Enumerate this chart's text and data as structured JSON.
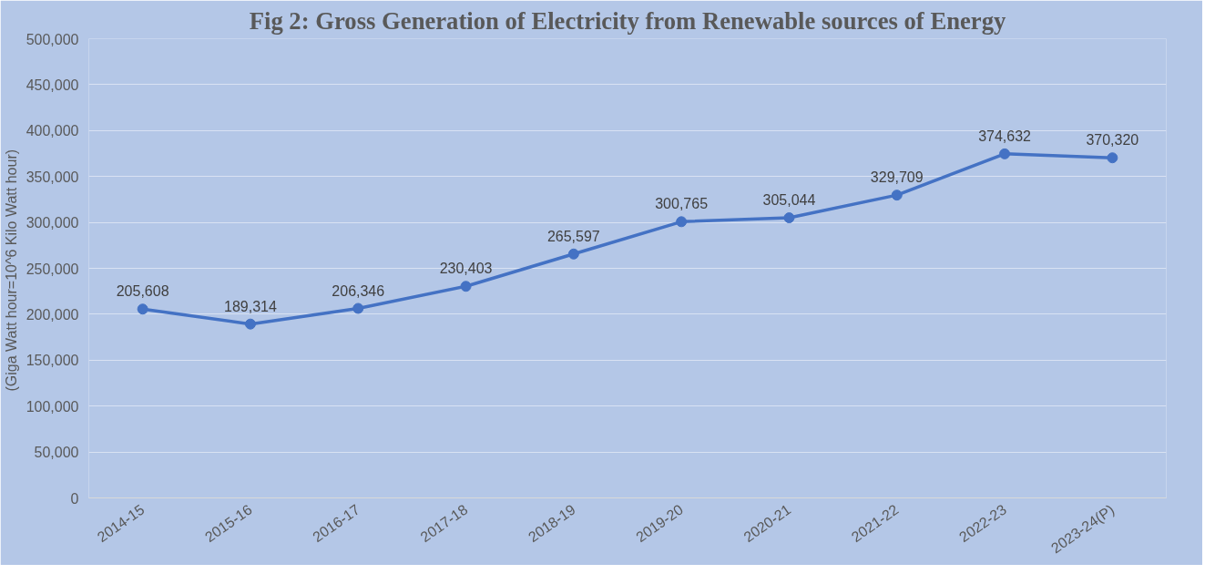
{
  "chart_data": {
    "type": "line",
    "title": "Fig 2: Gross Generation of Electricity from Renewable sources of Energy",
    "ylabel": "(Giga Watt hour=10^6  Kilo Watt hour)",
    "categories": [
      "2014-15",
      "2015-16",
      "2016-17",
      "2017-18",
      "2018-19",
      "2019-20",
      "2020-21",
      "2021-22",
      "2022-23",
      "2023-24(P)"
    ],
    "series": [
      {
        "color": "#4472c4",
        "values": [
          205608,
          189314,
          206346,
          230403,
          265597,
          300765,
          305044,
          329709,
          374632,
          370320
        ],
        "value_labels": [
          "205,608",
          "189,314",
          "206,346",
          "230,403",
          "265,597",
          "300,765",
          "305,044",
          "329,709",
          "374,632",
          "370,320"
        ]
      }
    ],
    "ylim": [
      0,
      500000
    ],
    "yticks": [
      {
        "value": 0,
        "label": "0"
      },
      {
        "value": 50000,
        "label": "50,000"
      },
      {
        "value": 100000,
        "label": "100,000"
      },
      {
        "value": 150000,
        "label": "150,000"
      },
      {
        "value": 200000,
        "label": "200,000"
      },
      {
        "value": 250000,
        "label": "250,000"
      },
      {
        "value": 300000,
        "label": "300,000"
      },
      {
        "value": 350000,
        "label": "350,000"
      },
      {
        "value": 400000,
        "label": "400,000"
      },
      {
        "value": 450000,
        "label": "450,000"
      },
      {
        "value": 500000,
        "label": "500,000"
      }
    ],
    "grid": "y",
    "marker": "circle",
    "line_style": "solid"
  }
}
